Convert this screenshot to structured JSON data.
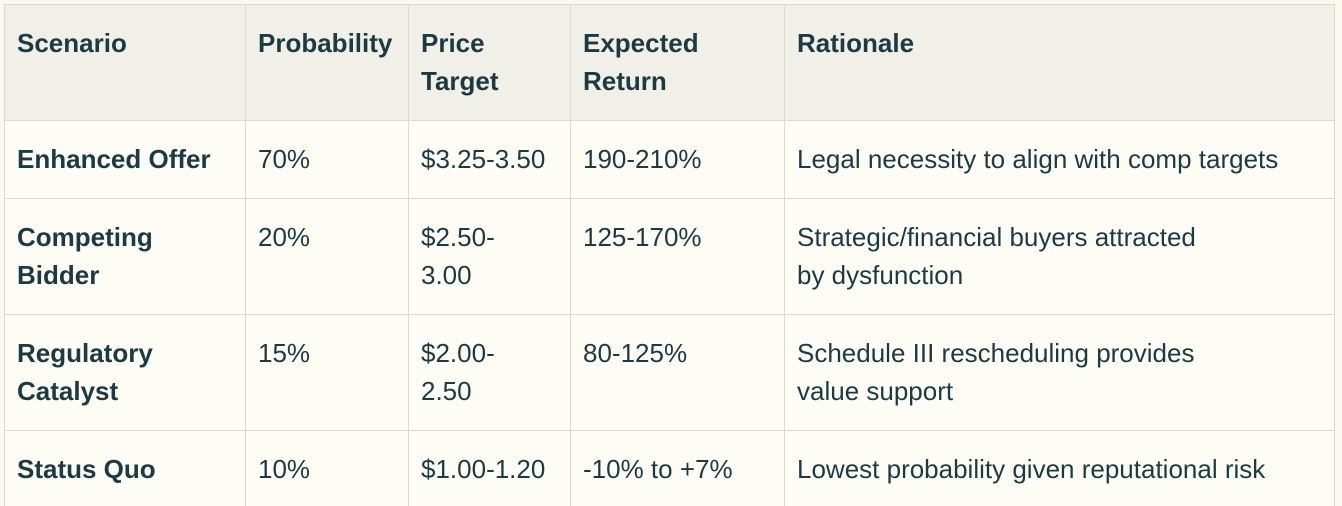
{
  "table": {
    "columns": [
      "Scenario",
      "Probability",
      "Price\nTarget",
      "Expected\nReturn",
      "Rationale"
    ],
    "rows": [
      {
        "scenario": "Enhanced Offer",
        "probability": "70%",
        "price_target": "$3.25-3.50",
        "expected_return": "190-210%",
        "rationale": "Legal necessity to align with comp targets"
      },
      {
        "scenario": "Competing\nBidder",
        "probability": "20%",
        "price_target": "$2.50-\n3.00",
        "expected_return": "125-170%",
        "rationale": "Strategic/financial buyers attracted\nby dysfunction"
      },
      {
        "scenario": "Regulatory\nCatalyst",
        "probability": "15%",
        "price_target": "$2.00-\n2.50",
        "expected_return": "80-125%",
        "rationale": "Schedule III rescheduling provides\nvalue support"
      },
      {
        "scenario": "Status Quo",
        "probability": "10%",
        "price_target": "$1.00-1.20",
        "expected_return": "-10% to +7%",
        "rationale": "Lowest probability given reputational risk"
      }
    ]
  },
  "colors": {
    "header_background": "#f0f0e9",
    "row_background": "#fdfdf6",
    "page_background": "#faf9f0",
    "border": "#d9dad0",
    "text": "#1d3a43"
  }
}
